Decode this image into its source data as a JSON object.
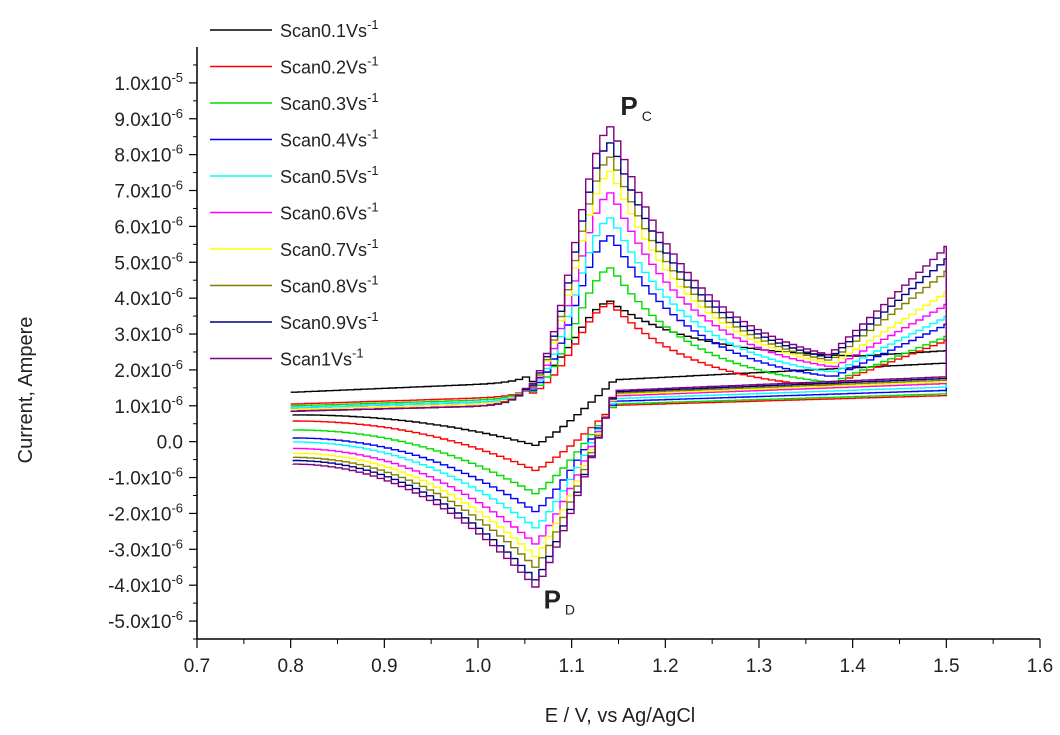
{
  "chart_data": {
    "type": "line",
    "xlabel": "E / V, vs Ag/AgCl",
    "ylabel": "Current, Ampere",
    "xlim": [
      0.7,
      1.6
    ],
    "ylim": [
      -5.5e-06,
      1.1e-05
    ],
    "x_ticks": [
      {
        "value": 0.7,
        "label": "0.7"
      },
      {
        "value": 0.8,
        "label": "0.8"
      },
      {
        "value": 0.9,
        "label": "0.9"
      },
      {
        "value": 1.0,
        "label": "1.0"
      },
      {
        "value": 1.1,
        "label": "1.1"
      },
      {
        "value": 1.2,
        "label": "1.2"
      },
      {
        "value": 1.3,
        "label": "1.3"
      },
      {
        "value": 1.4,
        "label": "1.4"
      },
      {
        "value": 1.5,
        "label": "1.5"
      },
      {
        "value": 1.6,
        "label": "1.6"
      }
    ],
    "y_ticks": [
      {
        "value": 1e-05,
        "base": "1.0x10",
        "exp": "-5"
      },
      {
        "value": 9e-06,
        "base": "9.0x10",
        "exp": "-6"
      },
      {
        "value": 8e-06,
        "base": "8.0x10",
        "exp": "-6"
      },
      {
        "value": 7e-06,
        "base": "7.0x10",
        "exp": "-6"
      },
      {
        "value": 6e-06,
        "base": "6.0x10",
        "exp": "-6"
      },
      {
        "value": 5e-06,
        "base": "5.0x10",
        "exp": "-6"
      },
      {
        "value": 4e-06,
        "base": "4.0x10",
        "exp": "-6"
      },
      {
        "value": 3e-06,
        "base": "3.0x10",
        "exp": "-6"
      },
      {
        "value": 2e-06,
        "base": "2.0x10",
        "exp": "-6"
      },
      {
        "value": 1e-06,
        "base": "1.0x10",
        "exp": "-6"
      },
      {
        "value": 0,
        "base": "0.0",
        "exp": ""
      },
      {
        "value": -1e-06,
        "base": "-1.0x10",
        "exp": "-6"
      },
      {
        "value": -2e-06,
        "base": "-2.0x10",
        "exp": "-6"
      },
      {
        "value": -3e-06,
        "base": "-3.0x10",
        "exp": "-6"
      },
      {
        "value": -4e-06,
        "base": "-4.0x10",
        "exp": "-6"
      },
      {
        "value": -5e-06,
        "base": "-5.0x10",
        "exp": "-6"
      }
    ],
    "grid": false,
    "legend_position": "top-left",
    "series": [
      {
        "name_base": "Scan0.1Vs",
        "name_exp": "-1",
        "color": "#000000",
        "start": 1.38e-06,
        "pa": 3.85e-06,
        "pc": -1e-07,
        "end": 2.5e-06,
        "plateau": 2.3e-06
      },
      {
        "name_base": "Scan0.2Vs",
        "name_exp": "-1",
        "color": "#ff0000",
        "start": 1.05e-06,
        "pa": 3.8e-06,
        "pc": -8e-07,
        "end": 2.6e-06,
        "plateau": 1.35e-06
      },
      {
        "name_base": "Scan0.3Vs",
        "name_exp": "-1",
        "color": "#00dd00",
        "start": 1e-06,
        "pa": 4.8e-06,
        "pc": -1.45e-06,
        "end": 2.7e-06,
        "plateau": 1.4e-06
      },
      {
        "name_base": "Scan0.4Vs",
        "name_exp": "-1",
        "color": "#0000ff",
        "start": 9.5e-07,
        "pa": 5.7e-06,
        "pc": -1.95e-06,
        "end": 3e-06,
        "plateau": 1.5e-06
      },
      {
        "name_base": "Scan0.5Vs",
        "name_exp": "-1",
        "color": "#00ffff",
        "start": 9.5e-07,
        "pa": 6.2e-06,
        "pc": -2.4e-06,
        "end": 3.2e-06,
        "plateau": 1.6e-06
      },
      {
        "name_base": "Scan0.6Vs",
        "name_exp": "-1",
        "color": "#ff00ff",
        "start": 9e-07,
        "pa": 6.9e-06,
        "pc": -2.85e-06,
        "end": 3.5e-06,
        "plateau": 1.7e-06
      },
      {
        "name_base": "Scan0.7Vs",
        "name_exp": "-1",
        "color": "#ffff00",
        "start": 9e-07,
        "pa": 7.5e-06,
        "pc": -3.2e-06,
        "end": 3.8e-06,
        "plateau": 1.75e-06
      },
      {
        "name_base": "Scan0.8Vs",
        "name_exp": "-1",
        "color": "#808000",
        "start": 8.5e-07,
        "pa": 7.9e-06,
        "pc": -3.5e-06,
        "end": 4.3e-06,
        "plateau": 1.8e-06
      },
      {
        "name_base": "Scan0.9Vs",
        "name_exp": "-1",
        "color": "#000080",
        "start": 8.5e-07,
        "pa": 8.3e-06,
        "pc": -3.85e-06,
        "end": 4.6e-06,
        "plateau": 1.85e-06
      },
      {
        "name_base": "Scan1Vs",
        "name_exp": "-1",
        "color": "#800080",
        "start": 8.5e-07,
        "pa": 8.75e-06,
        "pc": -4.05e-06,
        "end": 4.9e-06,
        "plateau": 1.9e-06
      }
    ],
    "annotations": [
      {
        "main": "P",
        "sub": "C",
        "x": 1.152,
        "y": 9.1e-06
      },
      {
        "main": "P",
        "sub": "D",
        "x": 1.07,
        "y": -4.65e-06
      }
    ]
  }
}
